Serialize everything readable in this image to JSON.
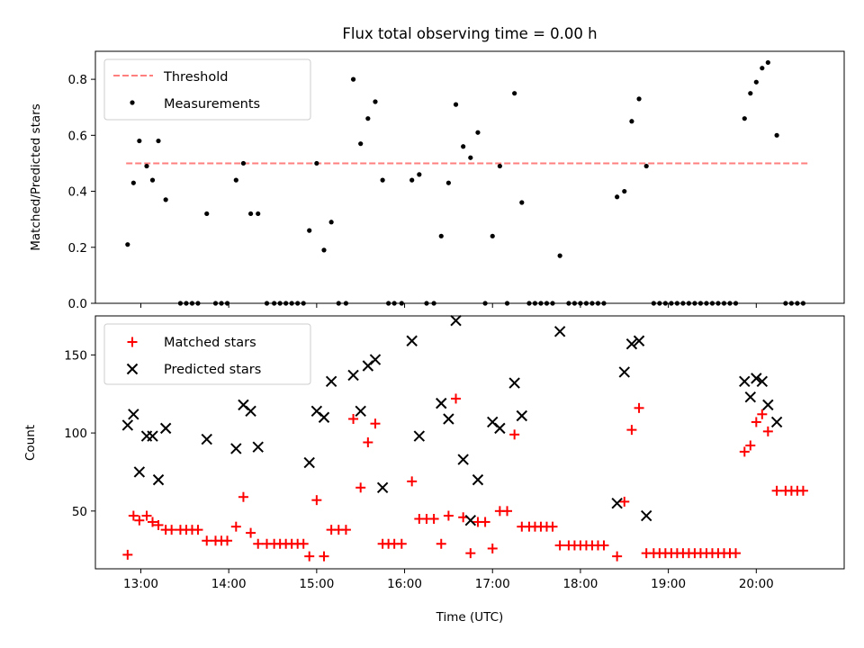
{
  "chart_data": [
    {
      "type": "scatter",
      "title": "Flux total observing time = 0.00 h",
      "xlabel": "",
      "ylabel": "Matched/Predicted stars",
      "xlim": [
        "12:29",
        "21:00"
      ],
      "ylim": [
        0,
        0.9
      ],
      "xticks": [
        "13:00",
        "14:00",
        "15:00",
        "16:00",
        "17:00",
        "18:00",
        "19:00",
        "20:00"
      ],
      "yticks": [
        "0.0",
        "0.2",
        "0.4",
        "0.6",
        "0.8"
      ],
      "legend_position": "upper-left",
      "threshold": {
        "name": "Threshold",
        "value": 0.5,
        "x_range": [
          "12:50",
          "20:35"
        ],
        "color": "#ff7f7f",
        "style": "dashed"
      },
      "series": [
        {
          "name": "Measurements",
          "color": "#000000",
          "marker": "dot",
          "points": [
            [
              "12:51",
              0.21
            ],
            [
              "12:55",
              0.43
            ],
            [
              "12:59",
              0.58
            ],
            [
              "13:04",
              0.49
            ],
            [
              "13:08",
              0.44
            ],
            [
              "13:12",
              0.58
            ],
            [
              "13:17",
              0.37
            ],
            [
              "13:27",
              0
            ],
            [
              "13:31",
              0
            ],
            [
              "13:35",
              0
            ],
            [
              "13:39",
              0
            ],
            [
              "13:45",
              0.32
            ],
            [
              "13:51",
              0
            ],
            [
              "13:55",
              0
            ],
            [
              "13:59",
              0
            ],
            [
              "14:05",
              0.44
            ],
            [
              "14:10",
              0.5
            ],
            [
              "14:15",
              0.32
            ],
            [
              "14:20",
              0.32
            ],
            [
              "14:26",
              0
            ],
            [
              "14:31",
              0
            ],
            [
              "14:35",
              0
            ],
            [
              "14:39",
              0
            ],
            [
              "14:43",
              0
            ],
            [
              "14:47",
              0
            ],
            [
              "14:51",
              0
            ],
            [
              "14:55",
              0.26
            ],
            [
              "15:00",
              0.5
            ],
            [
              "15:05",
              0.19
            ],
            [
              "15:10",
              0.29
            ],
            [
              "15:15",
              0
            ],
            [
              "15:20",
              0
            ],
            [
              "15:25",
              0.8
            ],
            [
              "15:30",
              0.57
            ],
            [
              "15:35",
              0.66
            ],
            [
              "15:40",
              0.72
            ],
            [
              "15:45",
              0.44
            ],
            [
              "15:49",
              0
            ],
            [
              "15:53",
              0
            ],
            [
              "15:58",
              0
            ],
            [
              "16:05",
              0.44
            ],
            [
              "16:10",
              0.46
            ],
            [
              "16:15",
              0
            ],
            [
              "16:20",
              0
            ],
            [
              "16:25",
              0.24
            ],
            [
              "16:30",
              0.43
            ],
            [
              "16:35",
              0.71
            ],
            [
              "16:40",
              0.56
            ],
            [
              "16:45",
              0.52
            ],
            [
              "16:50",
              0.61
            ],
            [
              "16:55",
              0
            ],
            [
              "17:00",
              0.24
            ],
            [
              "17:05",
              0.49
            ],
            [
              "17:10",
              0
            ],
            [
              "17:15",
              0.75
            ],
            [
              "17:20",
              0.36
            ],
            [
              "17:25",
              0
            ],
            [
              "17:29",
              0
            ],
            [
              "17:33",
              0
            ],
            [
              "17:37",
              0
            ],
            [
              "17:41",
              0
            ],
            [
              "17:46",
              0.17
            ],
            [
              "17:52",
              0
            ],
            [
              "17:56",
              0
            ],
            [
              "18:00",
              0
            ],
            [
              "18:04",
              0
            ],
            [
              "18:08",
              0
            ],
            [
              "18:12",
              0
            ],
            [
              "18:16",
              0
            ],
            [
              "18:25",
              0.38
            ],
            [
              "18:30",
              0.4
            ],
            [
              "18:35",
              0.65
            ],
            [
              "18:40",
              0.73
            ],
            [
              "18:45",
              0.49
            ],
            [
              "18:50",
              0
            ],
            [
              "18:54",
              0
            ],
            [
              "18:58",
              0
            ],
            [
              "19:02",
              0
            ],
            [
              "19:06",
              0
            ],
            [
              "19:10",
              0
            ],
            [
              "19:14",
              0
            ],
            [
              "19:18",
              0
            ],
            [
              "19:22",
              0
            ],
            [
              "19:26",
              0
            ],
            [
              "19:30",
              0
            ],
            [
              "19:34",
              0
            ],
            [
              "19:38",
              0
            ],
            [
              "19:42",
              0
            ],
            [
              "19:46",
              0
            ],
            [
              "19:52",
              0.66
            ],
            [
              "19:56",
              0.75
            ],
            [
              "20:00",
              0.79
            ],
            [
              "20:04",
              0.84
            ],
            [
              "20:08",
              0.86
            ],
            [
              "20:14",
              0.6
            ],
            [
              "20:20",
              0
            ],
            [
              "20:24",
              0
            ],
            [
              "20:28",
              0
            ],
            [
              "20:32",
              0
            ]
          ]
        }
      ]
    },
    {
      "type": "scatter",
      "title": "",
      "xlabel": "Time (UTC)",
      "ylabel": "Count",
      "xlim": [
        "12:29",
        "21:00"
      ],
      "ylim": [
        13,
        175
      ],
      "xticks": [
        "13:00",
        "14:00",
        "15:00",
        "16:00",
        "17:00",
        "18:00",
        "19:00",
        "20:00"
      ],
      "yticks": [
        "50",
        "100",
        "150"
      ],
      "legend_position": "upper-left",
      "series": [
        {
          "name": "Matched stars",
          "color": "#ff0000",
          "marker": "plus",
          "points": [
            [
              "12:51",
              22
            ],
            [
              "12:55",
              47
            ],
            [
              "12:59",
              44
            ],
            [
              "13:04",
              47
            ],
            [
              "13:08",
              43
            ],
            [
              "13:12",
              41
            ],
            [
              "13:17",
              38
            ],
            [
              "13:21",
              38
            ],
            [
              "13:27",
              38
            ],
            [
              "13:31",
              38
            ],
            [
              "13:35",
              38
            ],
            [
              "13:39",
              38
            ],
            [
              "13:45",
              31
            ],
            [
              "13:51",
              31
            ],
            [
              "13:55",
              31
            ],
            [
              "13:59",
              31
            ],
            [
              "14:05",
              40
            ],
            [
              "14:10",
              59
            ],
            [
              "14:15",
              36
            ],
            [
              "14:20",
              29
            ],
            [
              "14:26",
              29
            ],
            [
              "14:31",
              29
            ],
            [
              "14:35",
              29
            ],
            [
              "14:39",
              29
            ],
            [
              "14:43",
              29
            ],
            [
              "14:47",
              29
            ],
            [
              "14:51",
              29
            ],
            [
              "14:55",
              21
            ],
            [
              "15:00",
              57
            ],
            [
              "15:05",
              21
            ],
            [
              "15:10",
              38
            ],
            [
              "15:15",
              38
            ],
            [
              "15:20",
              38
            ],
            [
              "15:25",
              109
            ],
            [
              "15:30",
              65
            ],
            [
              "15:35",
              94
            ],
            [
              "15:40",
              106
            ],
            [
              "15:45",
              29
            ],
            [
              "15:49",
              29
            ],
            [
              "15:53",
              29
            ],
            [
              "15:58",
              29
            ],
            [
              "16:05",
              69
            ],
            [
              "16:10",
              45
            ],
            [
              "16:15",
              45
            ],
            [
              "16:20",
              45
            ],
            [
              "16:25",
              29
            ],
            [
              "16:30",
              47
            ],
            [
              "16:35",
              122
            ],
            [
              "16:40",
              46
            ],
            [
              "16:45",
              23
            ],
            [
              "16:50",
              43
            ],
            [
              "16:55",
              43
            ],
            [
              "17:00",
              26
            ],
            [
              "17:05",
              50
            ],
            [
              "17:10",
              50
            ],
            [
              "17:15",
              99
            ],
            [
              "17:20",
              40
            ],
            [
              "17:25",
              40
            ],
            [
              "17:29",
              40
            ],
            [
              "17:33",
              40
            ],
            [
              "17:37",
              40
            ],
            [
              "17:41",
              40
            ],
            [
              "17:46",
              28
            ],
            [
              "17:52",
              28
            ],
            [
              "17:56",
              28
            ],
            [
              "18:00",
              28
            ],
            [
              "18:04",
              28
            ],
            [
              "18:08",
              28
            ],
            [
              "18:12",
              28
            ],
            [
              "18:16",
              28
            ],
            [
              "18:25",
              21
            ],
            [
              "18:30",
              56
            ],
            [
              "18:35",
              102
            ],
            [
              "18:40",
              116
            ],
            [
              "18:45",
              23
            ],
            [
              "18:50",
              23
            ],
            [
              "18:54",
              23
            ],
            [
              "18:58",
              23
            ],
            [
              "19:02",
              23
            ],
            [
              "19:06",
              23
            ],
            [
              "19:10",
              23
            ],
            [
              "19:14",
              23
            ],
            [
              "19:18",
              23
            ],
            [
              "19:22",
              23
            ],
            [
              "19:26",
              23
            ],
            [
              "19:30",
              23
            ],
            [
              "19:34",
              23
            ],
            [
              "19:38",
              23
            ],
            [
              "19:42",
              23
            ],
            [
              "19:46",
              23
            ],
            [
              "19:52",
              88
            ],
            [
              "19:56",
              92
            ],
            [
              "20:00",
              107
            ],
            [
              "20:04",
              112
            ],
            [
              "20:08",
              101
            ],
            [
              "20:14",
              63
            ],
            [
              "20:20",
              63
            ],
            [
              "20:24",
              63
            ],
            [
              "20:28",
              63
            ],
            [
              "20:32",
              63
            ]
          ]
        },
        {
          "name": "Predicted stars",
          "color": "#000000",
          "marker": "x",
          "points": [
            [
              "12:51",
              105
            ],
            [
              "12:55",
              112
            ],
            [
              "12:59",
              75
            ],
            [
              "13:04",
              98
            ],
            [
              "13:08",
              98
            ],
            [
              "13:12",
              70
            ],
            [
              "13:17",
              103
            ],
            [
              "13:45",
              96
            ],
            [
              "14:05",
              90
            ],
            [
              "14:10",
              118
            ],
            [
              "14:15",
              114
            ],
            [
              "14:20",
              91
            ],
            [
              "14:55",
              81
            ],
            [
              "15:00",
              114
            ],
            [
              "15:05",
              110
            ],
            [
              "15:10",
              133
            ],
            [
              "15:25",
              137
            ],
            [
              "15:30",
              114
            ],
            [
              "15:35",
              143
            ],
            [
              "15:40",
              147
            ],
            [
              "15:45",
              65
            ],
            [
              "16:05",
              159
            ],
            [
              "16:10",
              98
            ],
            [
              "16:25",
              119
            ],
            [
              "16:30",
              109
            ],
            [
              "16:35",
              172
            ],
            [
              "16:40",
              83
            ],
            [
              "16:45",
              44
            ],
            [
              "16:50",
              70
            ],
            [
              "17:00",
              107
            ],
            [
              "17:05",
              103
            ],
            [
              "17:15",
              132
            ],
            [
              "17:20",
              111
            ],
            [
              "17:46",
              165
            ],
            [
              "18:25",
              55
            ],
            [
              "18:30",
              139
            ],
            [
              "18:35",
              157
            ],
            [
              "18:40",
              159
            ],
            [
              "18:45",
              47
            ],
            [
              "19:52",
              133
            ],
            [
              "19:56",
              123
            ],
            [
              "20:00",
              135
            ],
            [
              "20:04",
              133
            ],
            [
              "20:08",
              118
            ],
            [
              "20:14",
              107
            ]
          ]
        }
      ]
    }
  ]
}
